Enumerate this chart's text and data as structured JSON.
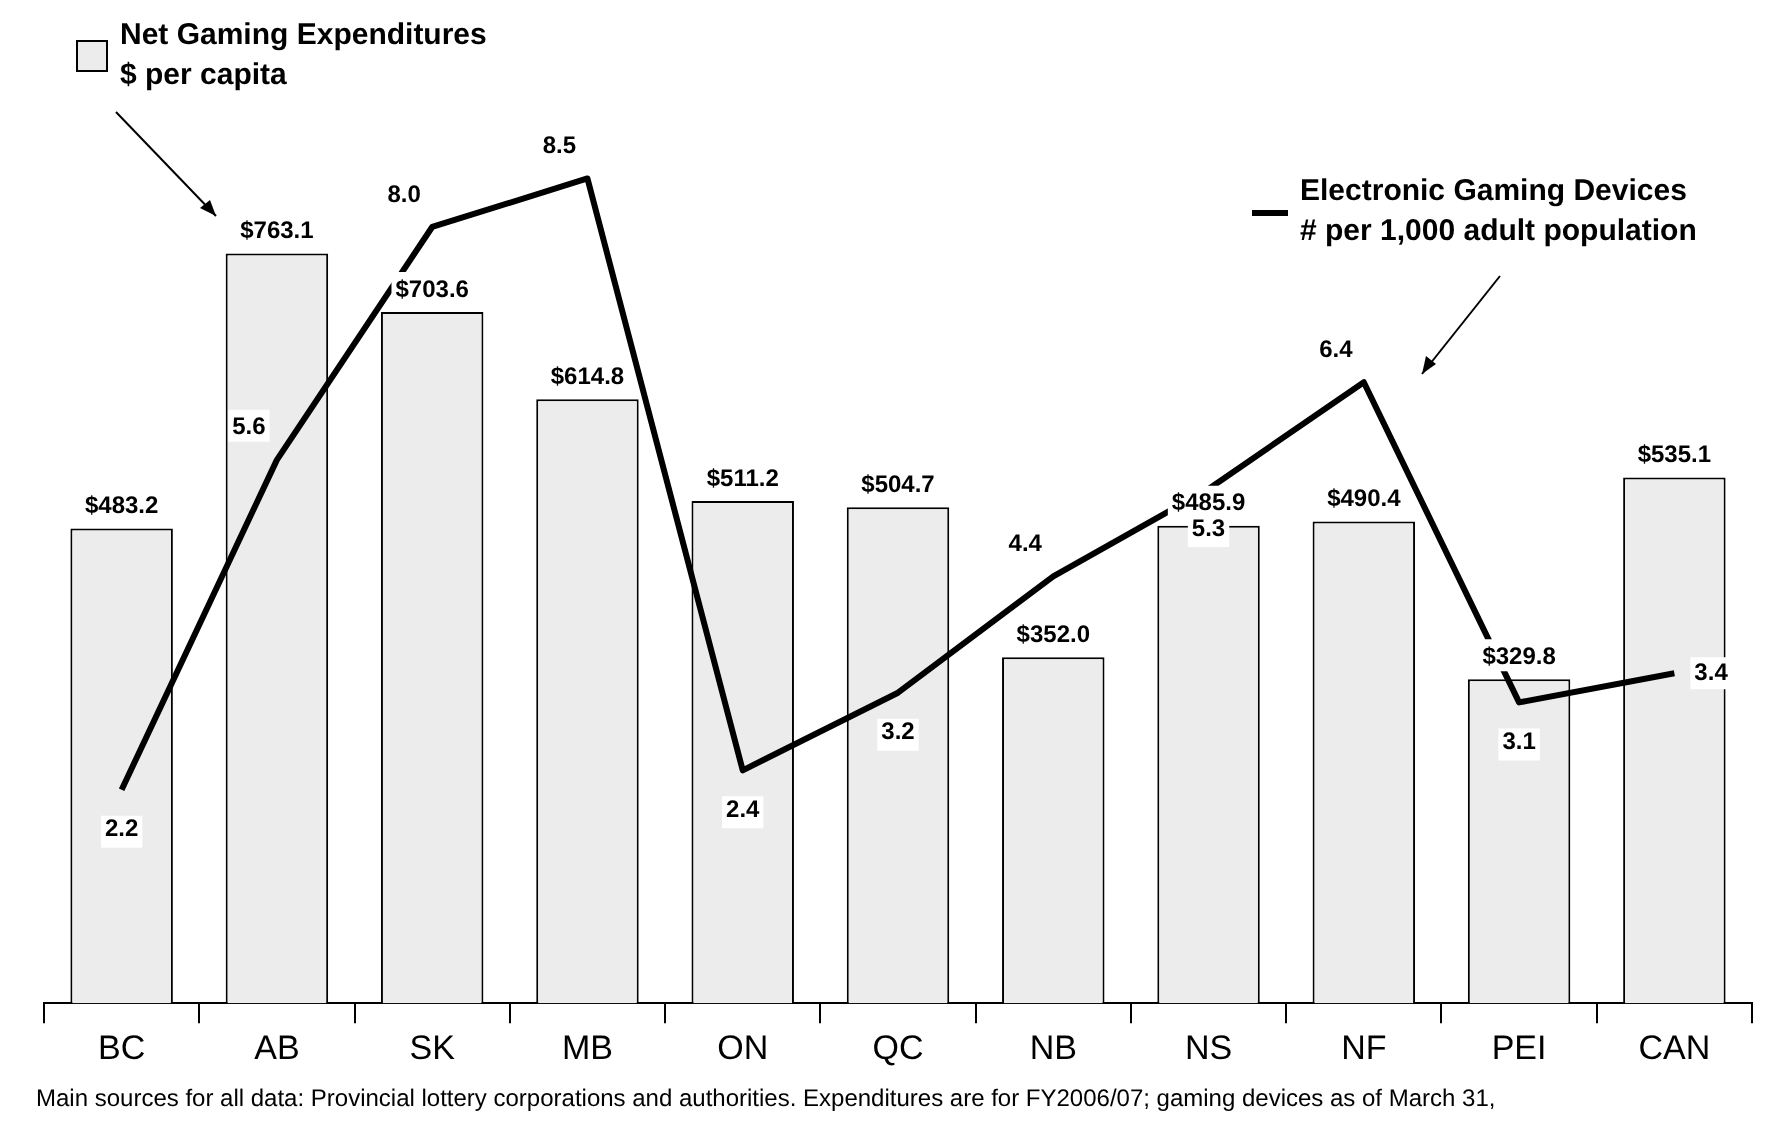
{
  "chart_data": {
    "type": "bar",
    "categories": [
      "BC",
      "AB",
      "SK",
      "MB",
      "ON",
      "QC",
      "NB",
      "NS",
      "NF",
      "PEI",
      "CAN"
    ],
    "series": [
      {
        "name": "Net Gaming Expenditures\n$ per capita",
        "color": "#ececec",
        "values": [
          483.2,
          763.1,
          703.6,
          614.8,
          511.2,
          504.7,
          352.0,
          485.9,
          490.4,
          329.8,
          535.1
        ],
        "value_labels": [
          "$483.2",
          "$763.1",
          "$703.6",
          "$614.8",
          "$511.2",
          "$504.7",
          "$352.0",
          "$485.9",
          "$490.4",
          "$329.8",
          "$535.1"
        ]
      },
      {
        "name": "Electronic Gaming Devices\n# per 1,000 adult population",
        "type": "line",
        "axis": "y2",
        "color": "#000000",
        "values": [
          2.2,
          5.6,
          8.0,
          8.5,
          2.4,
          3.2,
          4.4,
          5.3,
          6.4,
          3.1,
          3.4
        ],
        "value_labels": [
          "2.2",
          "5.6",
          "8.0",
          "8.5",
          "2.4",
          "3.2",
          "4.4",
          "5.3",
          "6.4",
          "3.1",
          "3.4"
        ]
      }
    ],
    "tick_labels": "x",
    "grid": false,
    "legend": "top",
    "marker": "none",
    "annotations": [
      "Main sources for all data: Provincial lottery corporations and authorities. Expenditures are for FY2006/07; gaming devices as of March 31,"
    ]
  }
}
